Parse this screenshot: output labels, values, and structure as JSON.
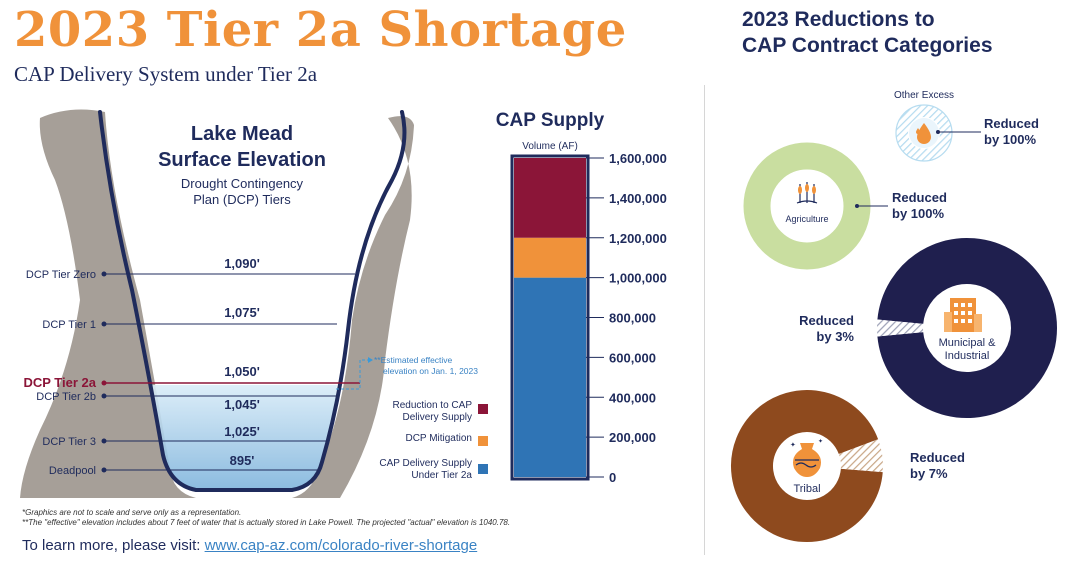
{
  "page": {
    "title": "2023 Tier 2a Shortage",
    "subtitle": "CAP Delivery System under Tier 2a",
    "right_title_line1": "2023 Reductions to",
    "right_title_line2": "CAP Contract Categories",
    "footnote1": "*Graphics are not to scale and serve only as a representation.",
    "footnote2": "**The \"effective\" elevation includes about 7 feet of water that is actually stored in Lake Powell. The projected \"actual\" elevation is 1040.78.",
    "learn_more": "To learn more, please visit:",
    "learn_link": "www.cap-az.com/colorado-river-shortage"
  },
  "colors": {
    "orange": "#f0923a",
    "navy": "#1f2b5c",
    "crimson": "#8b1538",
    "blue": "#2f74b5",
    "rock": "#a69f98",
    "agri": "#c9dea0",
    "muni": "#1f1f4e",
    "tribal": "#8e4a1e",
    "other": "#b6dcf0"
  },
  "chart_data": [
    {
      "type": "diagram",
      "title_line1": "Lake Mead",
      "title_line2": "Surface Elevation",
      "caption_line1": "Drought Contingency",
      "caption_line2": "Plan (DCP) Tiers",
      "levels": [
        {
          "tier": "DCP Tier Zero",
          "elevation": "1,090'",
          "value": 1090,
          "highlight": false
        },
        {
          "tier": "DCP Tier 1",
          "elevation": "1,075'",
          "value": 1075,
          "highlight": false
        },
        {
          "tier": "DCP Tier 2a",
          "elevation": "1,050'",
          "value": 1050,
          "highlight": true
        },
        {
          "tier": "DCP Tier 2b",
          "elevation": "1,045'",
          "value": 1045,
          "highlight": false
        },
        {
          "tier": "DCP Tier 3",
          "elevation": "1,025'",
          "value": 1025,
          "highlight": false
        },
        {
          "tier": "Deadpool",
          "elevation": "895'",
          "value": 895,
          "highlight": false
        }
      ],
      "annotation_line1": "**Estimated effective",
      "annotation_line2": "elevation on Jan. 1, 2023"
    },
    {
      "type": "bar",
      "stacked": true,
      "title": "CAP Supply",
      "ylabel": "Volume (AF)",
      "ylim": [
        0,
        1600000
      ],
      "ticks": [
        "1,600,000",
        "1,400,000",
        "1,200,000",
        "1,000,000",
        "800,000",
        "600,000",
        "400,000",
        "200,000",
        "0"
      ],
      "tick_values": [
        1600000,
        1400000,
        1200000,
        1000000,
        800000,
        600000,
        400000,
        200000,
        0
      ],
      "series": [
        {
          "name_line1": "CAP Delivery Supply",
          "name_line2": "Under Tier 2a",
          "value": 1000000,
          "color": "#2f74b5"
        },
        {
          "name_line1": "DCP Mitigation",
          "name_line2": "",
          "value": 200000,
          "color": "#f0923a"
        },
        {
          "name_line1": "Reduction to CAP",
          "name_line2": "Delivery Supply",
          "value": 400000,
          "color": "#8b1538"
        }
      ]
    },
    {
      "type": "pie",
      "title": "2023 Reductions to CAP Contract Categories",
      "categories": [
        {
          "name": "Other Excess",
          "label_line1": "Other Excess",
          "label_line2": "",
          "reduction_line1": "Reduced",
          "reduction_line2": "by 100%",
          "percent": 100,
          "color": "#b6dcf0"
        },
        {
          "name": "Agriculture",
          "label_line1": "Agriculture",
          "label_line2": "",
          "reduction_line1": "Reduced",
          "reduction_line2": "by 100%",
          "percent": 100,
          "color": "#c9dea0"
        },
        {
          "name": "Municipal & Industrial",
          "label_line1": "Municipal &",
          "label_line2": "Industrial",
          "reduction_line1": "Reduced",
          "reduction_line2": "by 3%",
          "percent": 3,
          "color": "#1f1f4e"
        },
        {
          "name": "Tribal",
          "label_line1": "Tribal",
          "label_line2": "",
          "reduction_line1": "Reduced",
          "reduction_line2": "by 7%",
          "percent": 7,
          "color": "#8e4a1e"
        }
      ]
    }
  ]
}
